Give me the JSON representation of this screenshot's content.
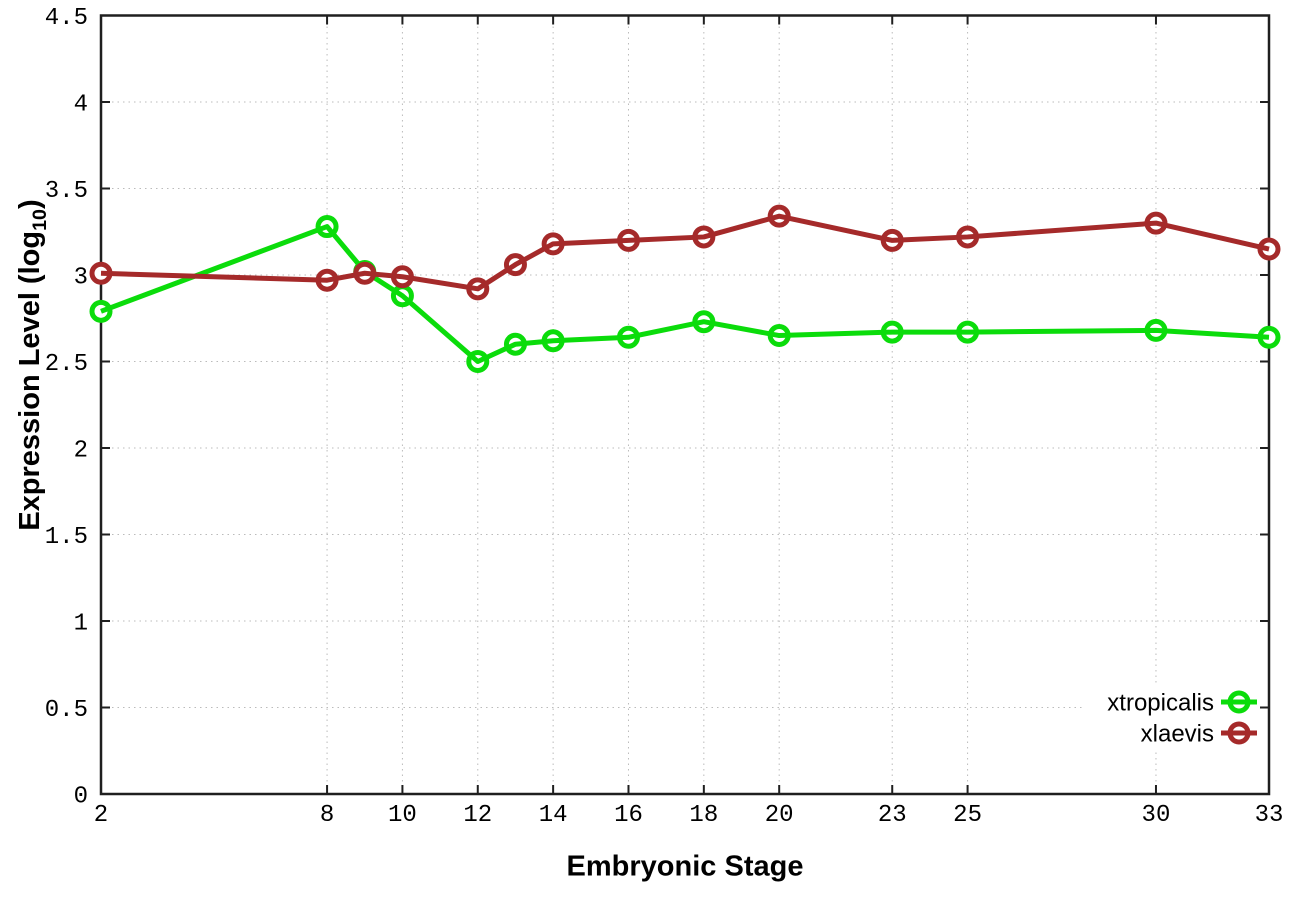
{
  "chart_data": {
    "type": "line",
    "title": "",
    "xlabel": "Embryonic Stage",
    "ylabel": {
      "main": "Expression Level (log",
      "sub": "10",
      "close": ")"
    },
    "x": [
      2,
      8,
      9,
      10,
      12,
      13,
      14,
      16,
      18,
      20,
      23,
      25,
      30,
      33
    ],
    "series": [
      {
        "name": "xtropicalis",
        "color": "#0bdc0b",
        "values": [
          2.79,
          3.28,
          3.02,
          2.88,
          2.5,
          2.6,
          2.62,
          2.64,
          2.73,
          2.65,
          2.67,
          2.67,
          2.68,
          2.64
        ]
      },
      {
        "name": "xlaevis",
        "color": "#a52a2a",
        "values": [
          3.01,
          2.97,
          3.01,
          2.99,
          2.92,
          3.06,
          3.18,
          3.2,
          3.22,
          3.34,
          3.2,
          3.22,
          3.3,
          3.15
        ]
      }
    ],
    "xlim": [
      2,
      33
    ],
    "ylim": [
      0,
      4.5
    ],
    "xticks": [
      2,
      8,
      10,
      12,
      14,
      16,
      18,
      20,
      23,
      25,
      30,
      33
    ],
    "xtick_labels": [
      "2",
      "8",
      "10",
      "12",
      "14",
      "16",
      "18",
      "20",
      "23",
      "25",
      "30",
      "33"
    ],
    "yticks": [
      0,
      0.5,
      1,
      1.5,
      2,
      2.5,
      3,
      3.5,
      4,
      4.5
    ],
    "ytick_labels": [
      "0",
      "0.5",
      "1",
      "1.5",
      "2",
      "2.5",
      "3",
      "3.5",
      "4",
      "4.5"
    ],
    "grid": true,
    "legend_position": "bottom-right",
    "marker": "open-circle",
    "colors": {
      "grid": "#bbbbbb",
      "axis": "#1f1f1f",
      "text": "#000000",
      "legend_background": "#ffffff"
    }
  }
}
